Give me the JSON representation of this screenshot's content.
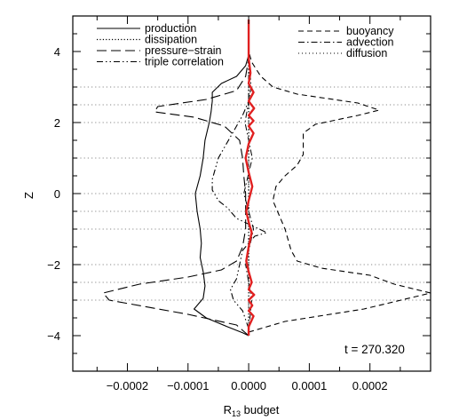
{
  "chart_data": {
    "type": "line",
    "xlabel": "R13 budget",
    "xlabel_main": "R",
    "xlabel_sub": "13",
    "xlabel_rest": " budget",
    "ylabel": "Z",
    "xlim": [
      -0.00029,
      0.0003
    ],
    "ylim": [
      -5,
      5
    ],
    "xticks": [
      -0.0002,
      -0.0001,
      0.0,
      0.0001,
      0.0002
    ],
    "xtick_labels": [
      "−0.0002",
      "−0.0001",
      "0.0000",
      "0.0001",
      "0.0002"
    ],
    "yticks": [
      -4,
      -2,
      0,
      2,
      4
    ],
    "ytick_labels": [
      "−4",
      "−2",
      "0",
      "2",
      "4"
    ],
    "grid": "horizontal dotted lines at z = ±3, ±2.5, ±2, ±1, ±0.5, 0",
    "grid_z": [
      -3,
      -2.5,
      -2,
      -1,
      -0.5,
      0,
      1,
      2,
      2.5,
      3
    ],
    "annotation": "t = 270.320",
    "legend": {
      "position": "top",
      "left": [
        "production",
        "dissipation",
        "pressure−strain",
        "triple correlation"
      ],
      "right": [
        "buoyancy",
        "advection",
        "diffusion"
      ]
    },
    "series": [
      {
        "name": "production",
        "style": "solid",
        "color": "#000000",
        "points": [
          [
            0.0,
            -4.0
          ],
          [
            -1e-05,
            -3.92
          ],
          [
            -3.5e-05,
            -3.75
          ],
          [
            -7e-05,
            -3.5
          ],
          [
            -9e-05,
            -3.25
          ],
          [
            -7.5e-05,
            -2.95
          ],
          [
            -7.2e-05,
            -2.6
          ],
          [
            -7.5e-05,
            -2.2
          ],
          [
            -8e-05,
            -1.8
          ],
          [
            -7.8e-05,
            -1.4
          ],
          [
            -8e-05,
            -1.0
          ],
          [
            -8.5e-05,
            -0.5
          ],
          [
            -8.8e-05,
            0.0
          ],
          [
            -8e-05,
            0.5
          ],
          [
            -7.5e-05,
            1.0
          ],
          [
            -7.2e-05,
            1.5
          ],
          [
            -6.5e-05,
            2.0
          ],
          [
            -6.2e-05,
            2.3
          ],
          [
            -6e-05,
            2.6
          ],
          [
            -6e-05,
            2.85
          ],
          [
            -4.5e-05,
            3.1
          ],
          [
            -2e-05,
            3.3
          ],
          [
            -5e-06,
            3.6
          ],
          [
            0.0,
            3.9
          ]
        ]
      },
      {
        "name": "buoyancy",
        "style": "dashed",
        "color": "#000000",
        "points": [
          [
            0.0,
            -3.9
          ],
          [
            6e-05,
            -3.6
          ],
          [
            0.00019,
            -3.25
          ],
          [
            0.0003,
            -2.8
          ],
          [
            0.00024,
            -2.55
          ],
          [
            0.0002,
            -2.3
          ],
          [
            0.00012,
            -2.1
          ],
          [
            8e-05,
            -1.9
          ],
          [
            7e-05,
            -1.6
          ],
          [
            6.5e-05,
            -1.3
          ],
          [
            6e-05,
            -1.0
          ],
          [
            5e-05,
            -0.6
          ],
          [
            4e-05,
            -0.2
          ],
          [
            4.5e-05,
            0.2
          ],
          [
            6e-05,
            0.5
          ],
          [
            8e-05,
            0.8
          ],
          [
            9e-05,
            1.1
          ],
          [
            9e-05,
            1.4
          ],
          [
            9e-05,
            1.7
          ],
          [
            0.00011,
            1.95
          ],
          [
            0.00018,
            2.2
          ],
          [
            0.000215,
            2.35
          ],
          [
            0.00018,
            2.55
          ],
          [
            8e-05,
            2.8
          ],
          [
            4e-05,
            3.0
          ],
          [
            2e-05,
            3.3
          ],
          [
            5e-06,
            3.7
          ],
          [
            0.0,
            4.0
          ]
        ]
      },
      {
        "name": "pressure−strain",
        "style": "long-dash",
        "color": "#000000",
        "points": [
          [
            0.0,
            -4.0
          ],
          [
            -2e-05,
            -3.7
          ],
          [
            -0.0001,
            -3.4
          ],
          [
            -0.00023,
            -3.0
          ],
          [
            -0.00024,
            -2.8
          ],
          [
            -0.00018,
            -2.55
          ],
          [
            -0.0001,
            -2.35
          ],
          [
            -4.5e-05,
            -2.15
          ],
          [
            -2e-05,
            -1.9
          ],
          [
            -1e-05,
            -1.5
          ],
          [
            -5e-06,
            -1.0
          ],
          [
            -5e-06,
            -0.5
          ],
          [
            -5e-06,
            0.0
          ],
          [
            -8e-06,
            0.5
          ],
          [
            -1e-05,
            1.0
          ],
          [
            -1.5e-05,
            1.5
          ],
          [
            -4e-05,
            1.9
          ],
          [
            -9e-05,
            2.15
          ],
          [
            -0.000155,
            2.3
          ],
          [
            -0.00015,
            2.45
          ],
          [
            -7e-05,
            2.65
          ],
          [
            -2e-05,
            2.9
          ],
          [
            -5e-06,
            3.3
          ],
          [
            0.0,
            3.8
          ]
        ]
      },
      {
        "name": "triple correlation",
        "style": "dash-dot-dot",
        "color": "#000000",
        "points": [
          [
            0.0,
            -3.8
          ],
          [
            -1e-05,
            -3.3
          ],
          [
            -2.5e-05,
            -3.0
          ],
          [
            -3e-05,
            -2.7
          ],
          [
            -2e-05,
            -2.4
          ],
          [
            -1.5e-05,
            -2.0
          ],
          [
            -1e-05,
            -1.6
          ],
          [
            1e-05,
            -1.2
          ],
          [
            3e-05,
            -1.1
          ],
          [
            5e-06,
            -0.9
          ],
          [
            -2e-05,
            -0.7
          ],
          [
            -3.5e-05,
            -0.4
          ],
          [
            -5e-05,
            -0.2
          ],
          [
            -6e-05,
            0.1
          ],
          [
            -6e-05,
            0.4
          ],
          [
            -5.5e-05,
            0.7
          ],
          [
            -5e-05,
            1.0
          ],
          [
            -4e-05,
            1.3
          ],
          [
            -3e-05,
            1.6
          ],
          [
            -2e-05,
            1.9
          ],
          [
            -1e-05,
            2.2
          ],
          [
            0.0,
            2.6
          ],
          [
            0.0,
            3.5
          ]
        ]
      },
      {
        "name": "dissipation",
        "style": "dotted",
        "color": "#000000",
        "points": [
          [
            0.0,
            -4.0
          ],
          [
            0.0,
            4.0
          ]
        ]
      },
      {
        "name": "advection",
        "style": "dash-dot",
        "color": "#000000",
        "points": [
          [
            0.0,
            -3.9
          ],
          [
            5e-06,
            -3.0
          ],
          [
            -5e-06,
            -2.0
          ],
          [
            8e-06,
            -1.0
          ],
          [
            -8e-06,
            0.0
          ],
          [
            6e-06,
            1.0
          ],
          [
            -6e-06,
            2.0
          ],
          [
            4e-06,
            3.0
          ],
          [
            0.0,
            3.9
          ]
        ]
      },
      {
        "name": "diffusion",
        "style": "dotted-light",
        "color": "#000000",
        "points": [
          [
            0.0,
            -4.0
          ],
          [
            0.0,
            4.0
          ]
        ]
      },
      {
        "name": "",
        "style": "solid-thick",
        "color": "#e02020",
        "points": [
          [
            0.0,
            -4.0
          ],
          [
            0.0,
            -3.75
          ],
          [
            8e-06,
            -3.45
          ],
          [
            0.0,
            -3.3
          ],
          [
            6e-06,
            -3.15
          ],
          [
            0.0,
            -3.0
          ],
          [
            9e-06,
            -2.85
          ],
          [
            0.0,
            -2.7
          ],
          [
            5e-06,
            -2.5
          ],
          [
            0.0,
            -2.2
          ],
          [
            -4e-06,
            -1.9
          ],
          [
            0.0,
            -1.5
          ],
          [
            5e-06,
            -1.1
          ],
          [
            0.0,
            -0.8
          ],
          [
            -4e-06,
            -0.5
          ],
          [
            0.0,
            -0.2
          ],
          [
            6e-06,
            0.2
          ],
          [
            0.0,
            0.6
          ],
          [
            -5e-06,
            1.0
          ],
          [
            0.0,
            1.4
          ],
          [
            8e-06,
            1.7
          ],
          [
            0.0,
            1.9
          ],
          [
            8e-06,
            2.05
          ],
          [
            0.0,
            2.2
          ],
          [
            9e-06,
            2.4
          ],
          [
            0.0,
            2.6
          ],
          [
            8e-06,
            2.85
          ],
          [
            0.0,
            3.1
          ],
          [
            3e-06,
            3.4
          ],
          [
            0.0,
            3.8
          ],
          [
            0.0,
            4.9
          ]
        ]
      }
    ]
  }
}
